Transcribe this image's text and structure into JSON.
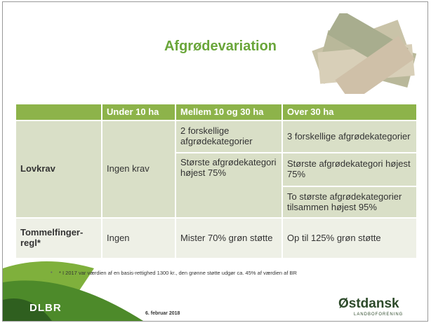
{
  "title": "Afgrødevariation",
  "table": {
    "header": [
      "Under 10 ha",
      "Mellem 10 og 30 ha",
      "Over 30 ha"
    ],
    "rows": [
      {
        "label": "Lovkrav",
        "cells": [
          [
            "Ingen krav"
          ],
          [
            "2 forskellige afgrødekategorier",
            "Største afgrødekategori højest 75%"
          ],
          [
            "3 forskellige afgrødekategorier",
            "Største afgrødekategori højest 75%",
            "To største afgrødekategorier tilsammen højest 95%"
          ]
        ]
      },
      {
        "label": "Tommelfinger-regl*",
        "cells": [
          [
            "Ingen"
          ],
          [
            "Mister 70% grøn støtte"
          ],
          [
            "Op til 125% grøn støtte"
          ]
        ]
      }
    ]
  },
  "footnote": "* I 2017 var værdien af en basis-rettighed 1300 kr., den grønne støtte udgør ca. 45% af værdien af BR",
  "footer": {
    "left_logo": "DLBR",
    "date": "6. februar 2018",
    "right_logo": "Østdansk",
    "right_logo_sub": "LANDBOFORENING"
  }
}
